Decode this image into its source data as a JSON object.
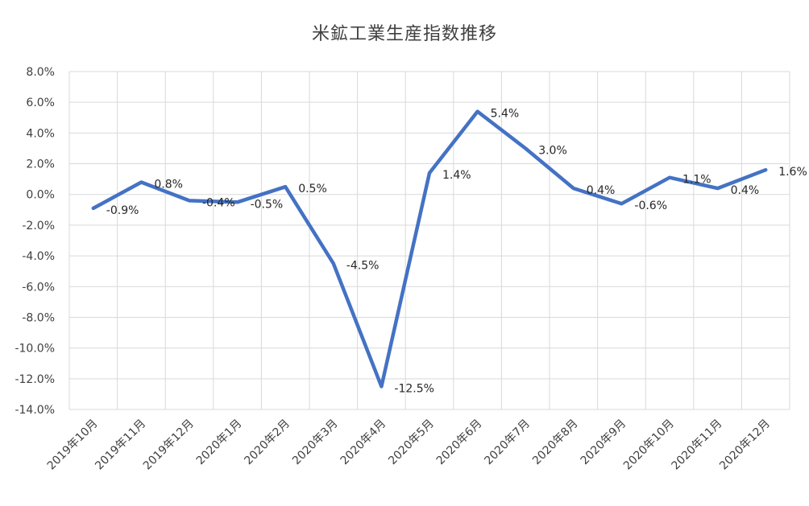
{
  "chart_data": {
    "type": "line",
    "title": "米鉱工業生産指数推移",
    "xlabel": "",
    "ylabel": "",
    "categories": [
      "2019年10月",
      "2019年11月",
      "2019年12月",
      "2020年1月",
      "2020年2月",
      "2020年3月",
      "2020年4月",
      "2020年5月",
      "2020年6月",
      "2020年7月",
      "2020年8月",
      "2020年9月",
      "2020年10月",
      "2020年11月",
      "2020年12月"
    ],
    "series": [
      {
        "values": [
          -0.9,
          0.8,
          -0.4,
          -0.5,
          0.5,
          -4.5,
          -12.5,
          1.4,
          5.4,
          3.0,
          0.4,
          -0.6,
          1.1,
          0.4,
          1.6
        ],
        "data_labels": [
          "-0.9%",
          "0.8%",
          "-0.4%",
          "-0.5%",
          "0.5%",
          "-4.5%",
          "-12.5%",
          "1.4%",
          "5.4%",
          "3.0%",
          "0.4%",
          "-0.6%",
          "1.1%",
          "0.4%",
          "1.6%"
        ],
        "color": "#4472C4"
      }
    ],
    "ylim": [
      -14,
      8
    ],
    "yticks": [
      8,
      6,
      4,
      2,
      0,
      -2,
      -4,
      -6,
      -8,
      -10,
      -12,
      -14
    ],
    "ytick_labels": [
      "8.0%",
      "6.0%",
      "4.0%",
      "2.0%",
      "0.0%",
      "-2.0%",
      "-4.0%",
      "-6.0%",
      "-8.0%",
      "-10.0%",
      "-12.0%",
      "-14.0%"
    ],
    "grid": true,
    "grid_color": "#d9d9d9",
    "legend": "none"
  }
}
